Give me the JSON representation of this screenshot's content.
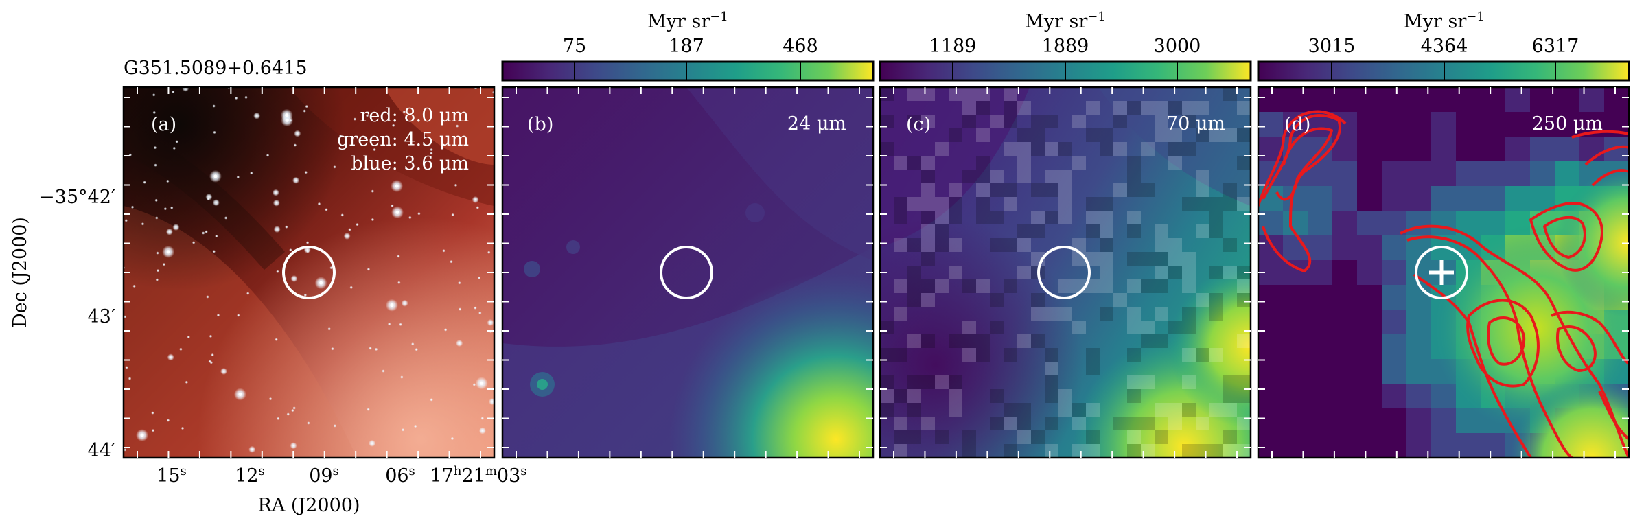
{
  "figure": {
    "source_name": "G351.5089+0.6415",
    "axes": {
      "xlabel": "RA (J2000)",
      "ylabel": "Dec (J2000)",
      "ra_ticks": [
        {
          "label_main": "15",
          "label_sup": "s"
        },
        {
          "label_main": "12",
          "label_sup": "s"
        },
        {
          "label_main": "09",
          "label_sup": "s"
        },
        {
          "label_main": "06",
          "label_sup": "s"
        },
        {
          "label_main": "17",
          "label_sup": "h",
          "label_main2": "21",
          "label_sup2": "m",
          "label_main3": "03",
          "label_sup3": "s"
        }
      ],
      "dec_ticks": [
        "−35°42′",
        "43′",
        "44′"
      ]
    },
    "panel_a": {
      "letter": "(a)",
      "legend": [
        "red: 8.0 μm",
        "green: 4.5 μm",
        "blue: 3.6 μm"
      ]
    },
    "panel_b": {
      "letter": "(b)",
      "band": "24 μm",
      "colorbar": {
        "unit_main": "Myr sr",
        "unit_sup": "−1",
        "ticks": [
          "75",
          "187",
          "468"
        ]
      }
    },
    "panel_c": {
      "letter": "(c)",
      "band": "70 μm",
      "colorbar": {
        "unit_main": "Myr sr",
        "unit_sup": "−1",
        "ticks": [
          "1189",
          "1889",
          "3000"
        ]
      }
    },
    "panel_d": {
      "letter": "(d)",
      "band": "250 μm",
      "colorbar": {
        "unit_main": "Myr sr",
        "unit_sup": "−1",
        "ticks": [
          "3015",
          "4364",
          "6317"
        ]
      }
    },
    "colors": {
      "viridis_low": "#440154",
      "viridis_mid": "#21918c",
      "viridis_high": "#fde725",
      "contour": "#e8191c",
      "marker": "#ffffff"
    }
  }
}
